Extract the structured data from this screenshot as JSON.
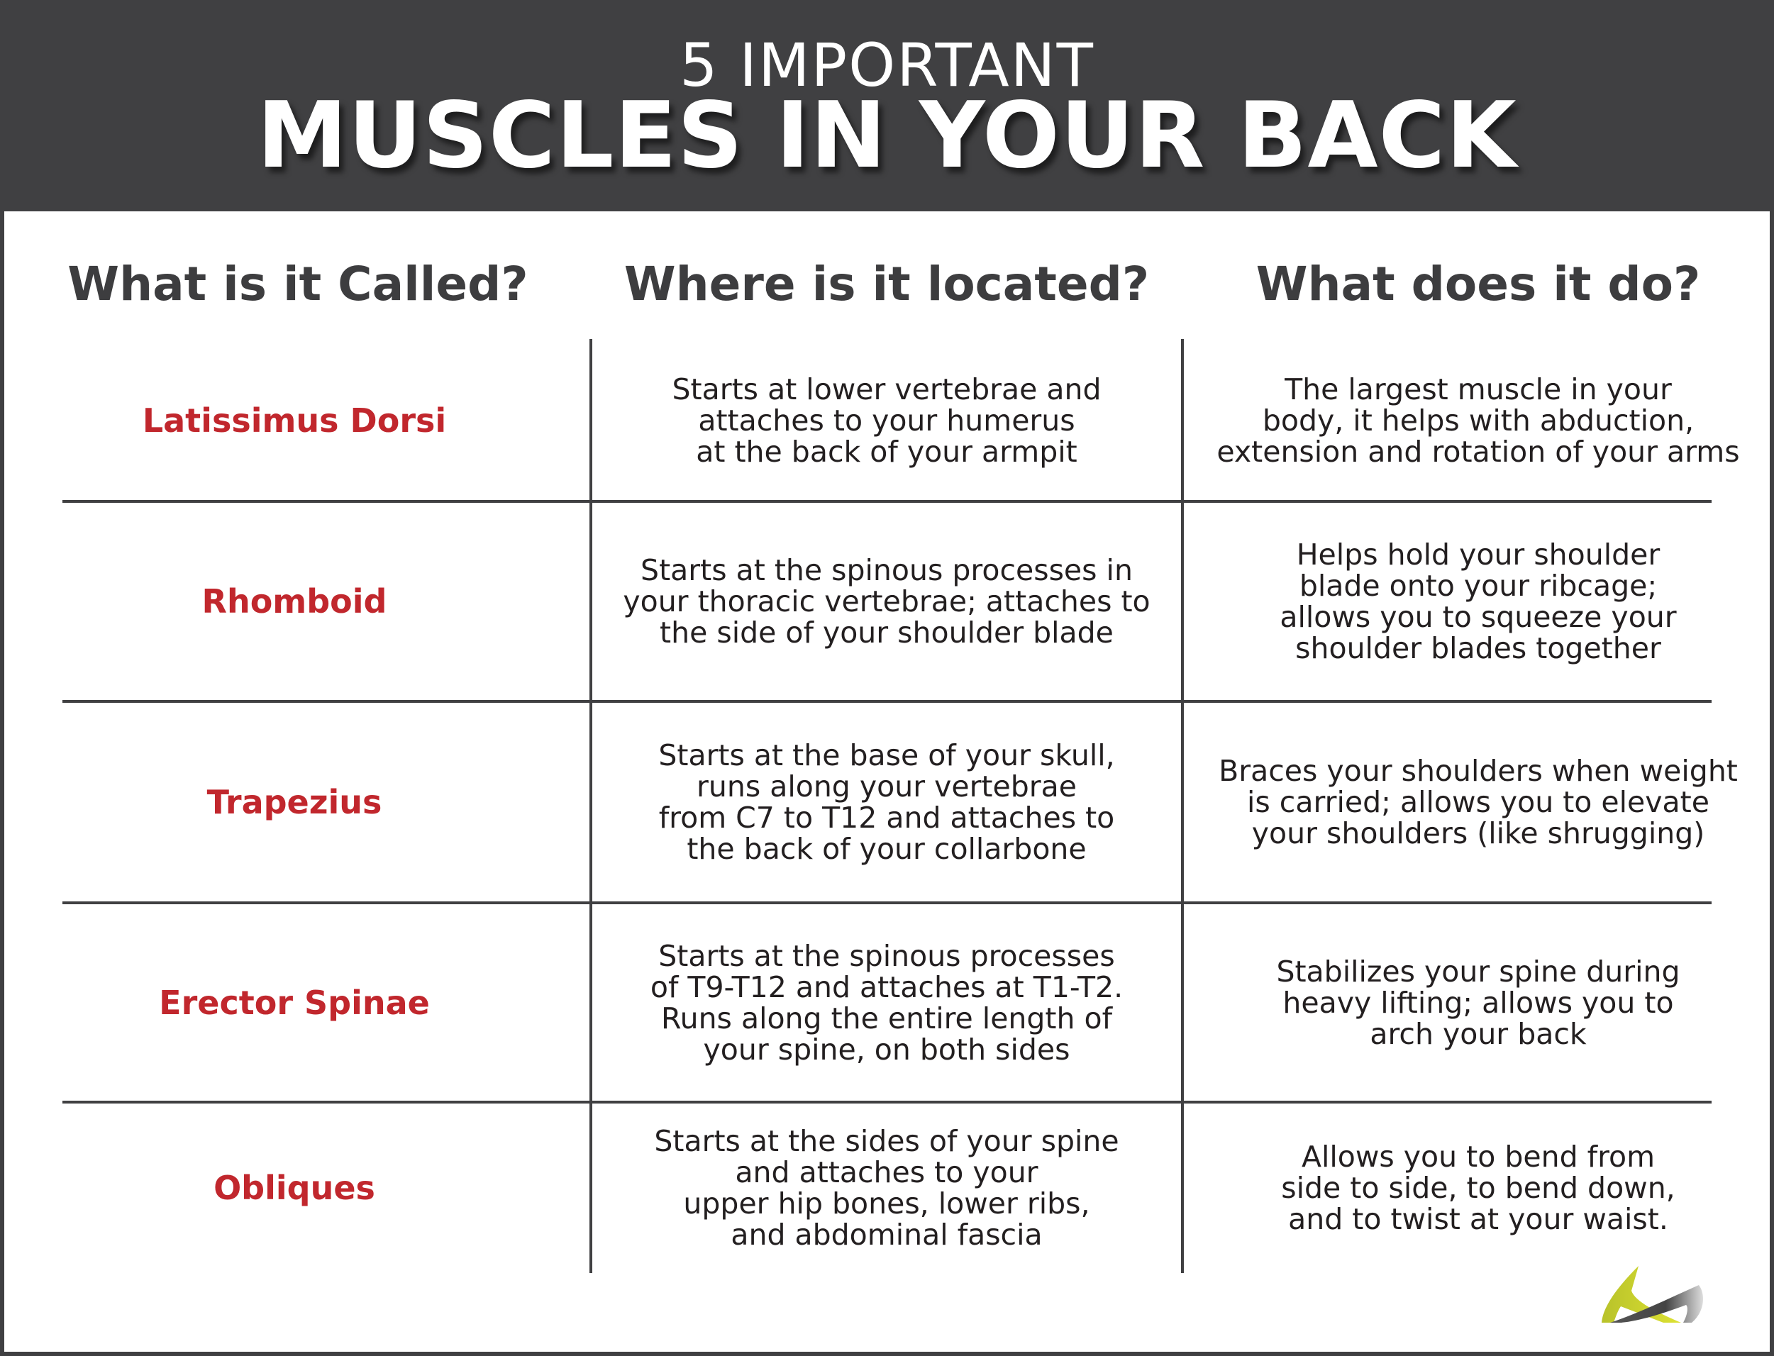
{
  "header": {
    "subtitle": "5 IMPORTANT",
    "title": "MUSCLES IN YOUR BACK"
  },
  "columns": [
    "What is it Called?",
    "Where is it located?",
    "What does it do?"
  ],
  "rows": [
    {
      "name": "Latissimus Dorsi",
      "location": "Starts at lower vertebrae and\nattaches to your humerus\nat the back of your armpit",
      "function": "The largest muscle in your\nbody, it helps with abduction,\nextension and rotation of your arms"
    },
    {
      "name": "Rhomboid",
      "location": "Starts at the spinous processes in\nyour thoracic vertebrae; attaches to\nthe side of your shoulder blade",
      "function": "Helps hold your shoulder\nblade onto your ribcage;\nallows you to squeeze your\nshoulder blades together"
    },
    {
      "name": "Trapezius",
      "location": "Starts at the base of your skull,\nruns along your vertebrae\nfrom C7 to T12 and attaches to\nthe back of your collarbone",
      "function": "Braces your shoulders when weight\nis carried; allows you to elevate\nyour shoulders (like shrugging)"
    },
    {
      "name": "Erector Spinae",
      "location": "Starts at the spinous processes\nof T9-T12 and attaches at T1-T2.\nRuns along the entire length of\nyour spine, on both sides",
      "function": "Stabilizes your spine during\nheavy lifting; allows you to\narch your back"
    },
    {
      "name": "Obliques",
      "location": "Starts at the sides of your spine\nand attaches to your\nupper hip bones, lower ribs,\nand abdominal fascia",
      "function": "Allows you to bend from\nside to side, to bend down,\nand to twist at your waist."
    }
  ],
  "colors": {
    "header_bg": "#404042",
    "name_red": "#c1272d",
    "text": "#231f20",
    "logo_green": "#c8d42a"
  },
  "logo_icon": "brand-logo-icon"
}
